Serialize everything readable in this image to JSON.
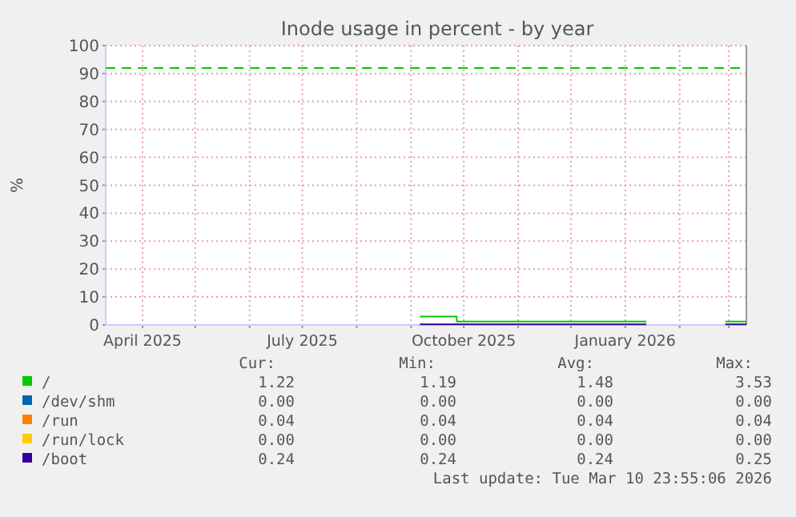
{
  "chart_data": {
    "type": "step",
    "title": "Inode usage in percent - by year",
    "ylabel": "%",
    "xlim": [
      "2025-03-10T23:55",
      "2026-03-10T23:55"
    ],
    "xticks": [
      {
        "value": "2025-04-01",
        "label": "April 2025"
      },
      {
        "value": "2025-05-01",
        "label": null
      },
      {
        "value": "2025-06-01",
        "label": null
      },
      {
        "value": "2025-07-01",
        "label": "July 2025"
      },
      {
        "value": "2025-08-01",
        "label": null
      },
      {
        "value": "2025-09-01",
        "label": null
      },
      {
        "value": "2025-10-01",
        "label": "October 2025"
      },
      {
        "value": "2025-11-01",
        "label": null
      },
      {
        "value": "2025-12-01",
        "label": null
      },
      {
        "value": "2026-01-01",
        "label": "January 2026"
      },
      {
        "value": "2026-02-01",
        "label": null
      },
      {
        "value": "2026-03-01",
        "label": null
      }
    ],
    "ylim": [
      0,
      100
    ],
    "yticks": [
      0,
      10,
      20,
      30,
      40,
      50,
      60,
      70,
      80,
      90,
      100
    ],
    "grid": true,
    "legend": "bottom",
    "line_style": "solid",
    "x": [
      "2025-09-06",
      "2025-09-27",
      "2026-01-13",
      "2026-01-20",
      "2026-02-27",
      "2026-03-10T23:55"
    ],
    "series": [
      {
        "name": "/",
        "color": "#00cc00",
        "values": [
          3,
          1.2,
          1.2,
          null,
          1.2,
          1.2
        ]
      },
      {
        "name": "/dev/shm",
        "color": "#0066b3",
        "values": [
          null,
          null,
          null,
          null,
          null,
          null
        ]
      },
      {
        "name": "/run",
        "color": "#ff8000",
        "values": [
          null,
          null,
          null,
          null,
          null,
          null
        ]
      },
      {
        "name": "/run/lock",
        "color": "#ffcc00",
        "values": [
          null,
          null,
          null,
          null,
          null,
          null
        ]
      },
      {
        "name": "/boot",
        "color": "#330099",
        "values": [
          0.24,
          0.24,
          0.24,
          null,
          0.24,
          0.24
        ]
      }
    ],
    "ref_lines": [
      {
        "axis": "y",
        "value": 92,
        "color": "#00cc00",
        "line_style": "dashed"
      }
    ],
    "annotations": [
      "Cur:",
      "Min:",
      "Avg:",
      "Max:",
      "1.22",
      "1.19",
      "1.48",
      "3.53",
      "0.00",
      "0.00",
      "0.00",
      "0.00",
      "0.04",
      "0.04",
      "0.04",
      "0.04",
      "0.00",
      "0.00",
      "0.00",
      "0.00",
      "0.24",
      "0.24",
      "0.24",
      "0.25",
      "Last update: Tue Mar 10 23:55:06 2026"
    ]
  }
}
